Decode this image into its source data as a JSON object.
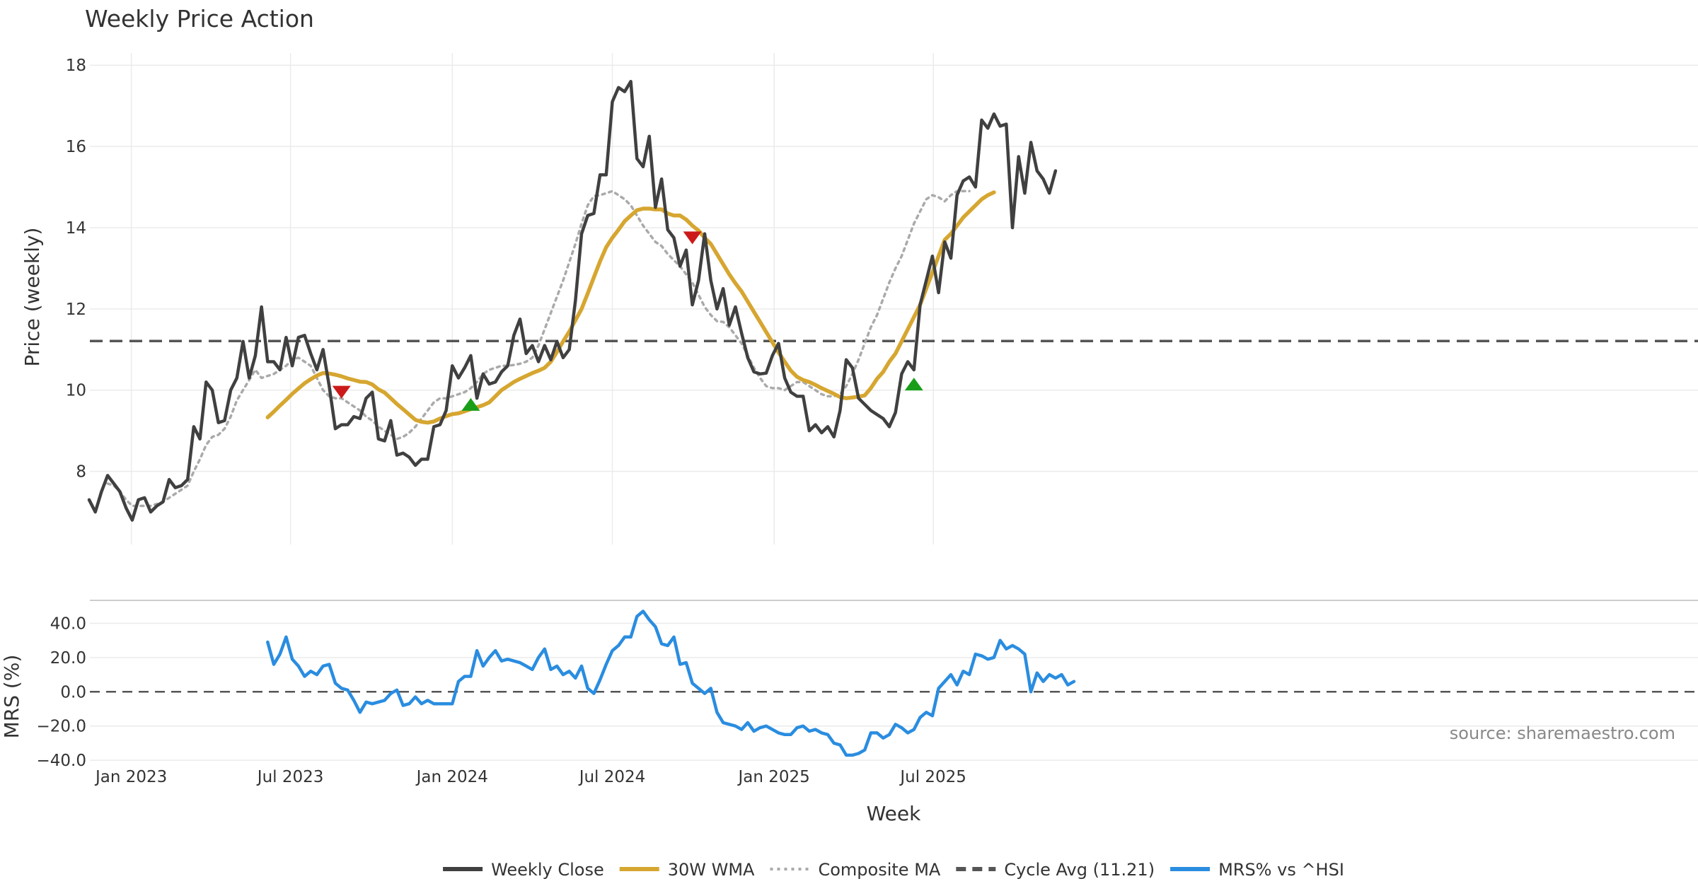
{
  "chart_data": [
    {
      "type": "line",
      "title": "Weekly Price Action",
      "ylabel": "Price (weekly)",
      "xlabel": "",
      "ylim": [
        6.2,
        18.3
      ],
      "yticks": [
        8,
        10,
        12,
        14,
        16,
        18
      ],
      "grid": true,
      "cycle_avg": 11.21,
      "x_start": "2022-11-14",
      "x_step_days": 7,
      "series": [
        {
          "name": "Weekly Close",
          "color": "#404040",
          "style": "solid",
          "width": 4.5,
          "start": 0,
          "values": [
            7.3,
            7.0,
            7.5,
            7.9,
            7.7,
            7.5,
            7.1,
            6.8,
            7.3,
            7.35,
            7.0,
            7.15,
            7.25,
            7.8,
            7.6,
            7.65,
            7.8,
            9.1,
            8.8,
            10.2,
            10.0,
            9.2,
            9.25,
            10.0,
            10.3,
            11.2,
            10.3,
            10.85,
            12.05,
            10.7,
            10.7,
            10.5,
            11.3,
            10.6,
            11.3,
            11.35,
            10.9,
            10.5,
            11.0,
            10.1,
            9.05,
            9.15,
            9.15,
            9.35,
            9.3,
            9.8,
            9.95,
            8.8,
            8.75,
            9.25,
            8.4,
            8.45,
            8.35,
            8.15,
            8.3,
            8.3,
            9.1,
            9.15,
            9.5,
            10.6,
            10.3,
            10.55,
            10.85,
            9.8,
            10.4,
            10.15,
            10.2,
            10.45,
            10.6,
            11.35,
            11.75,
            10.9,
            11.1,
            10.7,
            11.1,
            10.75,
            11.2,
            10.8,
            11.0,
            12.2,
            13.85,
            14.3,
            14.35,
            15.3,
            15.3,
            17.1,
            17.45,
            17.35,
            17.6,
            15.7,
            15.5,
            16.25,
            14.5,
            15.2,
            13.95,
            13.75,
            13.05,
            13.45,
            12.1,
            12.7,
            13.85,
            12.7,
            12.0,
            12.5,
            11.6,
            12.05,
            11.4,
            10.8,
            10.45,
            10.4,
            10.42,
            10.85,
            11.15,
            10.3,
            9.95,
            9.85,
            9.85,
            9.0,
            9.15,
            8.95,
            9.1,
            8.85,
            9.5,
            10.75,
            10.55,
            9.8,
            9.65,
            9.5,
            9.4,
            9.3,
            9.1,
            9.45,
            10.4,
            10.7,
            10.5,
            12.1,
            12.7,
            13.3,
            12.4,
            13.65,
            13.25,
            14.8,
            15.15,
            15.25,
            15.0,
            16.65,
            16.45,
            16.8,
            16.5,
            16.55,
            14.0,
            15.75,
            14.85,
            16.1,
            15.4,
            15.2,
            14.85,
            15.4
          ]
        },
        {
          "name": "30W WMA",
          "color": "#d6a630",
          "style": "solid",
          "width": 5.5,
          "start": 29,
          "values": [
            9.33,
            9.47,
            9.62,
            9.76,
            9.91,
            10.04,
            10.17,
            10.27,
            10.36,
            10.42,
            10.41,
            10.38,
            10.34,
            10.29,
            10.25,
            10.21,
            10.2,
            10.14,
            10.02,
            9.94,
            9.8,
            9.66,
            9.53,
            9.4,
            9.27,
            9.22,
            9.2,
            9.23,
            9.3,
            9.36,
            9.41,
            9.43,
            9.48,
            9.53,
            9.58,
            9.63,
            9.7,
            9.85,
            10.0,
            10.1,
            10.2,
            10.28,
            10.35,
            10.42,
            10.48,
            10.55,
            10.7,
            10.94,
            11.2,
            11.44,
            11.72,
            12.0,
            12.38,
            12.78,
            13.17,
            13.52,
            13.75,
            13.95,
            14.16,
            14.3,
            14.43,
            14.47,
            14.47,
            14.45,
            14.45,
            14.35,
            14.3,
            14.3,
            14.2,
            14.05,
            13.93,
            13.75,
            13.6,
            13.35,
            13.1,
            12.85,
            12.63,
            12.43,
            12.18,
            11.93,
            11.68,
            11.43,
            11.18,
            10.93,
            10.7,
            10.48,
            10.33,
            10.25,
            10.2,
            10.13,
            10.05,
            9.98,
            9.91,
            9.83,
            9.8,
            9.82,
            9.84,
            9.87,
            10.05,
            10.28,
            10.45,
            10.7,
            10.9,
            11.2,
            11.5,
            11.8,
            12.1,
            12.5,
            12.9,
            13.3,
            13.7,
            13.85,
            14.05,
            14.25,
            14.4,
            14.55,
            14.7,
            14.8,
            14.87
          ]
        },
        {
          "name": "Composite MA",
          "color": "#aaaaaa",
          "style": "dotted",
          "width": 3.5,
          "start": 3,
          "values": [
            7.7,
            7.65,
            7.5,
            7.3,
            7.15,
            7.15,
            7.15,
            7.15,
            7.2,
            7.25,
            7.35,
            7.45,
            7.55,
            7.65,
            8.0,
            8.3,
            8.65,
            8.85,
            8.9,
            9.05,
            9.35,
            9.75,
            10.0,
            10.25,
            10.5,
            10.3,
            10.35,
            10.4,
            10.5,
            10.6,
            10.75,
            10.8,
            10.7,
            10.6,
            10.3,
            10.0,
            9.85,
            9.8,
            9.8,
            9.7,
            9.6,
            9.5,
            9.35,
            9.25,
            9.1,
            9.0,
            8.9,
            8.8,
            8.85,
            8.95,
            9.1,
            9.3,
            9.5,
            9.7,
            9.8,
            9.8,
            9.85,
            9.9,
            9.95,
            10.05,
            10.2,
            10.4,
            10.5,
            10.55,
            10.6,
            10.6,
            10.62,
            10.65,
            10.7,
            10.8,
            11.1,
            11.5,
            11.9,
            12.3,
            12.7,
            13.15,
            13.6,
            14.1,
            14.55,
            14.78,
            14.8,
            14.85,
            14.9,
            14.8,
            14.7,
            14.55,
            14.3,
            14.05,
            13.85,
            13.65,
            13.55,
            13.35,
            13.2,
            13.05,
            12.85,
            12.65,
            12.35,
            12.05,
            11.85,
            11.7,
            11.68,
            11.55,
            11.35,
            11.15,
            10.85,
            10.55,
            10.3,
            10.1,
            10.05,
            10.05,
            10.0,
            10.1,
            10.2,
            10.2,
            10.1,
            10.0,
            9.9,
            9.85,
            9.85,
            9.9,
            10.1,
            10.4,
            10.75,
            11.15,
            11.55,
            11.85,
            12.25,
            12.65,
            13.0,
            13.3,
            13.7,
            14.1,
            14.4,
            14.7,
            14.8,
            14.75,
            14.65,
            14.8,
            14.9,
            14.9,
            14.9
          ]
        }
      ],
      "markers": [
        {
          "type": "sell",
          "color": "#cc1a1a",
          "week": 41,
          "value": 9.95
        },
        {
          "type": "buy",
          "color": "#1a9e1a",
          "week": 62,
          "value": 9.65
        },
        {
          "type": "sell",
          "color": "#cc1a1a",
          "week": 98,
          "value": 13.75
        },
        {
          "type": "buy",
          "color": "#1a9e1a",
          "week": 134,
          "value": 10.15
        }
      ]
    },
    {
      "type": "line",
      "title": "",
      "ylabel": "MRS (%)",
      "xlabel": "Week",
      "ylim": [
        -42,
        48
      ],
      "yticks": [
        "40.0",
        "20.0",
        "0.0",
        "−20.0",
        "−40.0"
      ],
      "ytick_values": [
        40,
        20,
        0,
        -20,
        -40
      ],
      "xticks": [
        "Jan 2023",
        "Jul 2023",
        "Jan 2024",
        "Jul 2024",
        "Jan 2025",
        "Jul 2025"
      ],
      "xtick_dates": [
        "2023-01-01",
        "2023-07-01",
        "2024-01-01",
        "2024-07-01",
        "2025-01-01",
        "2025-07-01"
      ],
      "grid": true,
      "source": "source: sharemaestro.com",
      "series": [
        {
          "name": "MRS% vs ^HSI",
          "color": "#2a8de0",
          "style": "solid",
          "width": 4.5,
          "start": 29,
          "values": [
            29,
            16,
            22,
            32,
            19,
            15,
            9,
            12,
            10,
            15,
            16,
            5,
            2,
            1,
            -5,
            -12,
            -6,
            -7,
            -6,
            -5,
            -1,
            1,
            -8,
            -7,
            -3,
            -7,
            -5,
            -7,
            -7,
            -7,
            -7,
            6,
            9,
            9,
            24,
            15,
            20,
            24,
            18,
            19,
            18,
            17,
            15,
            13,
            20,
            25,
            13,
            15,
            10,
            12,
            8,
            15,
            2,
            -1,
            7,
            16,
            24,
            27,
            32,
            32,
            44,
            47,
            42,
            38,
            28,
            27,
            32,
            16,
            17,
            5,
            2,
            -1,
            2,
            -12,
            -18,
            -19,
            -20,
            -22,
            -18,
            -23,
            -21,
            -20,
            -22,
            -24,
            -25,
            -25,
            -21,
            -20,
            -23,
            -22,
            -24,
            -25,
            -30,
            -31,
            -37,
            -37,
            -36,
            -34,
            -24,
            -24,
            -27,
            -25,
            -19,
            -21,
            -24,
            -22,
            -15,
            -12,
            -14,
            2,
            6,
            10,
            4,
            12,
            10,
            22,
            21,
            19,
            20,
            30,
            25,
            27,
            25,
            22,
            0,
            11,
            6,
            10,
            8,
            10,
            4,
            6
          ]
        }
      ],
      "zero_line": 0
    }
  ],
  "legend": {
    "placement": "bottom-center",
    "items": [
      {
        "label": "Weekly Close",
        "color": "#404040",
        "style": "solid"
      },
      {
        "label": "30W WMA",
        "color": "#d6a630",
        "style": "solid"
      },
      {
        "label": "Composite MA",
        "color": "#aaaaaa",
        "style": "dotted"
      },
      {
        "label": "Cycle Avg (11.21)",
        "color": "#555555",
        "style": "dashed"
      },
      {
        "label": "MRS% vs ^HSI",
        "color": "#2a8de0",
        "style": "solid"
      }
    ]
  }
}
